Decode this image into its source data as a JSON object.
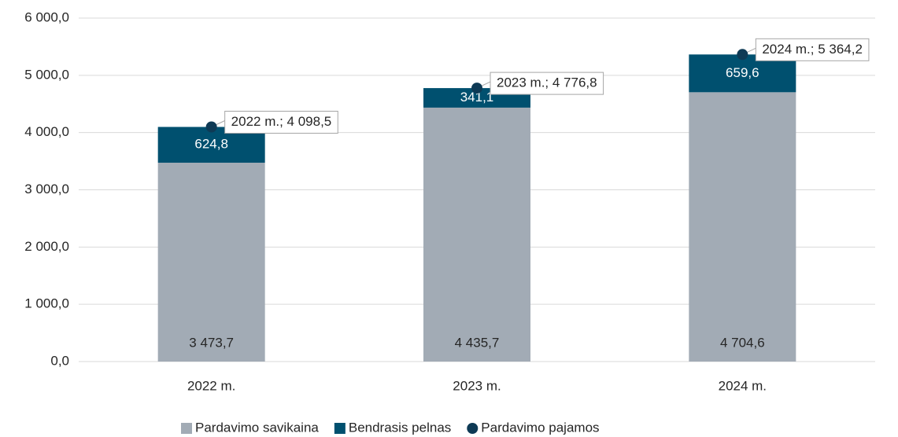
{
  "chart_data": {
    "type": "bar",
    "stacked": true,
    "categories": [
      "2022 m.",
      "2023 m.",
      "2024 m."
    ],
    "series": [
      {
        "name": "Pardavimo savikaina",
        "color": "#a2abb5",
        "values": [
          3473.7,
          4435.7,
          4704.6
        ],
        "value_labels": [
          "3 473,7",
          "4 435,7",
          "4 704,6"
        ]
      },
      {
        "name": "Bendrasis pelnas",
        "color": "#00506f",
        "values": [
          624.8,
          341.1,
          659.6
        ],
        "value_labels": [
          "624,8",
          "341,1",
          "659,6"
        ]
      },
      {
        "name": "Pardavimo pajamos",
        "type": "scatter",
        "color": "#0e3a55",
        "values": [
          4098.5,
          4776.8,
          5364.2
        ],
        "value_labels": [
          "2022 m.; 4 098,5",
          "2023 m.; 4 776,8",
          "2024 m.; 5 364,2"
        ]
      }
    ],
    "ylim": [
      0,
      6000
    ],
    "yticks": [
      {
        "value": 0,
        "label": "0,0"
      },
      {
        "value": 1000,
        "label": "1 000,0"
      },
      {
        "value": 2000,
        "label": "2 000,0"
      },
      {
        "value": 3000,
        "label": "3 000,0"
      },
      {
        "value": 4000,
        "label": "4 000,0"
      },
      {
        "value": 5000,
        "label": "5 000,0"
      },
      {
        "value": 6000,
        "label": "6 000,0"
      }
    ],
    "grid": true,
    "legend": "bottom"
  }
}
